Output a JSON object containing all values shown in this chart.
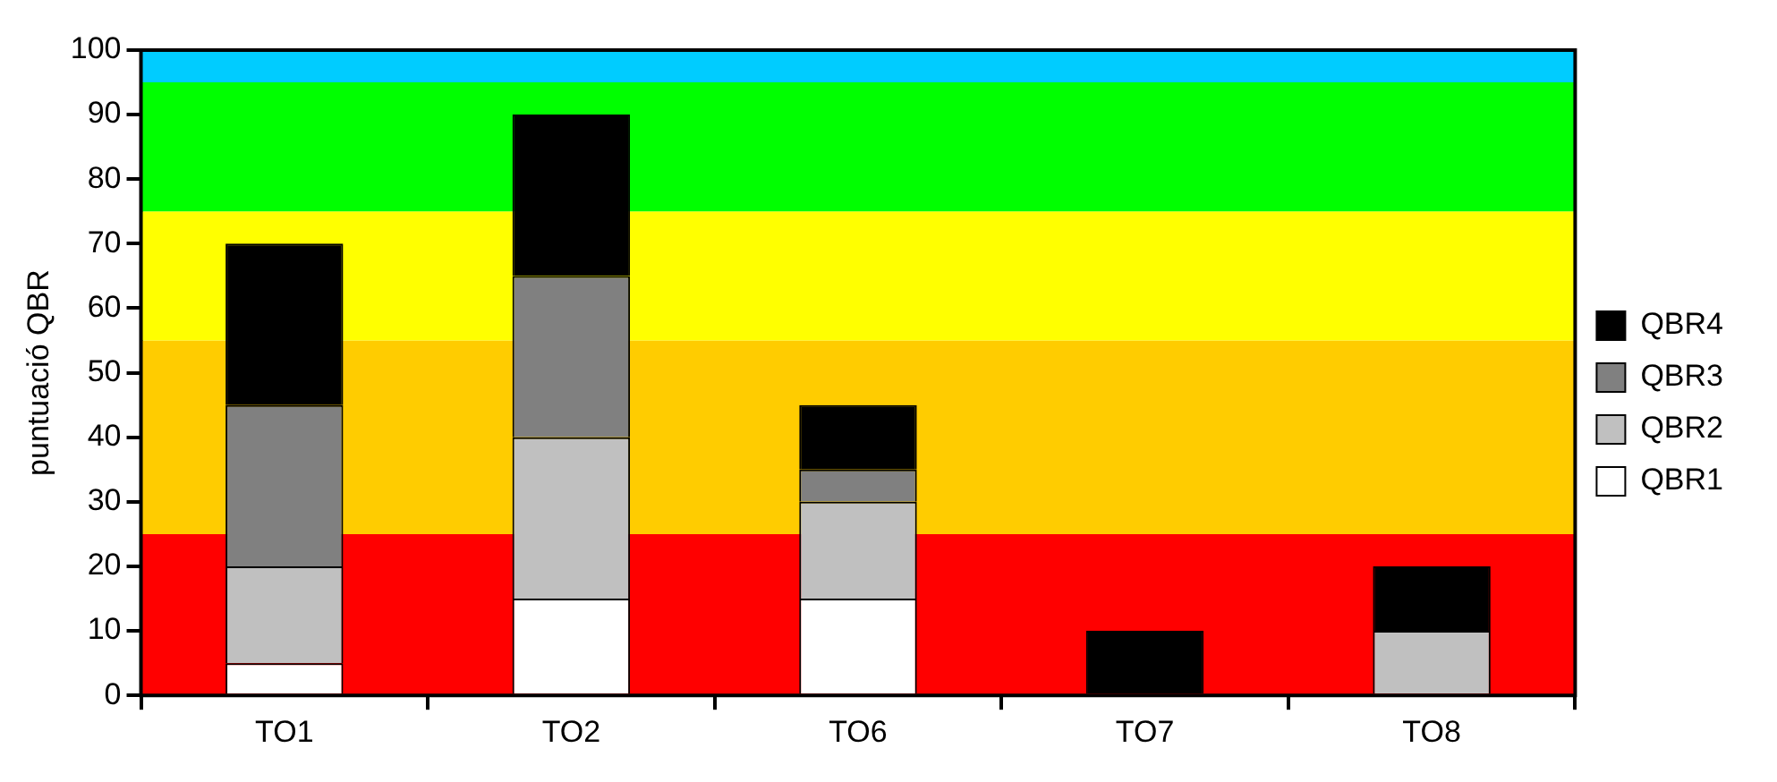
{
  "chart_data": {
    "type": "bar",
    "ylabel": "puntuació QBR",
    "categories": [
      "TO1",
      "TO2",
      "TO6",
      "TO7",
      "TO8"
    ],
    "stacked": true,
    "series": [
      {
        "name": "QBR1",
        "color": "#ffffff",
        "values": [
          5,
          15,
          15,
          null,
          null
        ]
      },
      {
        "name": "QBR2",
        "color": "#c0c0c0",
        "values": [
          15,
          25,
          15,
          null,
          10
        ]
      },
      {
        "name": "QBR3",
        "color": "#808080",
        "values": [
          25,
          25,
          5,
          null,
          null
        ]
      },
      {
        "name": "QBR4",
        "color": "#000000",
        "values": [
          25,
          25,
          10,
          10,
          10
        ]
      }
    ],
    "ylim": [
      0,
      100
    ],
    "yticks": [
      0,
      10,
      20,
      30,
      40,
      50,
      60,
      70,
      80,
      90,
      100
    ],
    "bands": [
      {
        "axis": "y",
        "from": 0,
        "to": 25,
        "color": "#ff0000"
      },
      {
        "axis": "y",
        "from": 25,
        "to": 55,
        "color": "#ffcc00"
      },
      {
        "axis": "y",
        "from": 55,
        "to": 75,
        "color": "#ffff00"
      },
      {
        "axis": "y",
        "from": 75,
        "to": 95,
        "color": "#00ff00"
      },
      {
        "axis": "y",
        "from": 95,
        "to": 100,
        "color": "#00ccff"
      }
    ],
    "grid": false,
    "legend": "right"
  }
}
